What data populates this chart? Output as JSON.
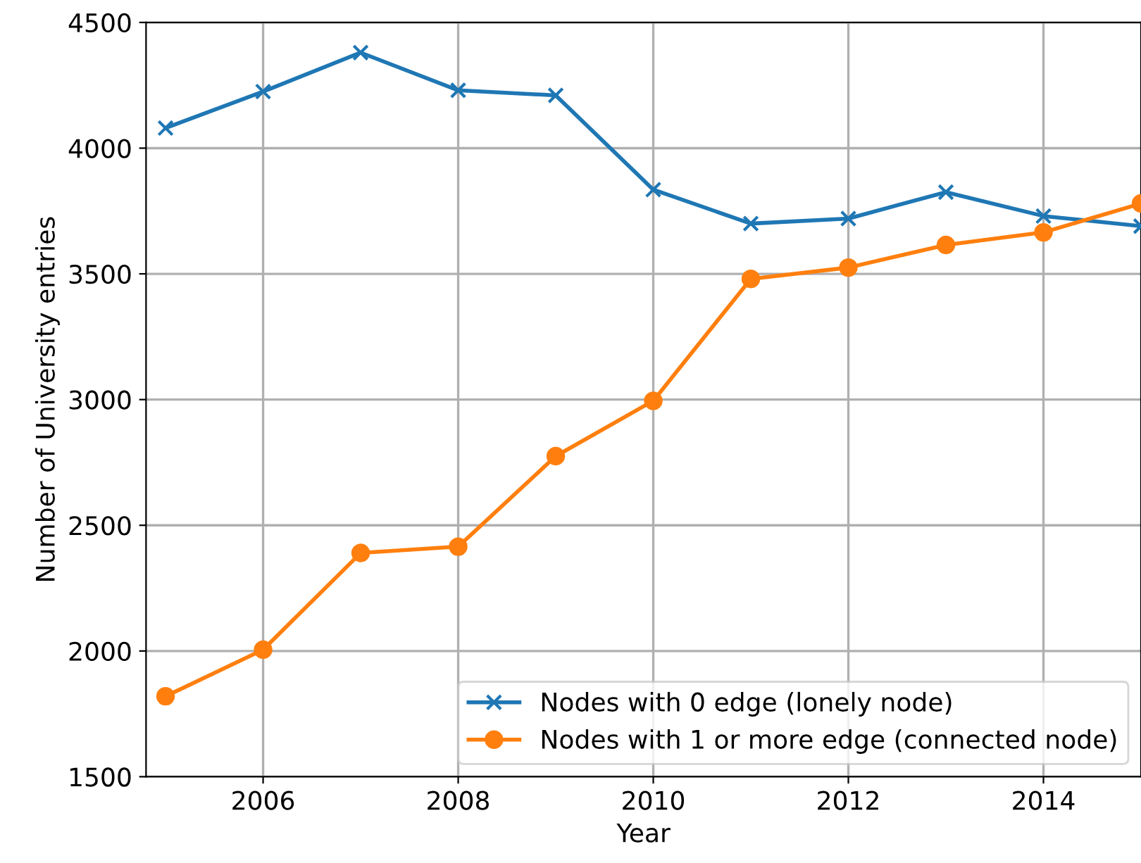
{
  "chart_data": {
    "type": "line",
    "xlabel": "Year",
    "ylabel": "Number of University entries",
    "x": [
      2005,
      2006,
      2007,
      2008,
      2009,
      2010,
      2011,
      2012,
      2013,
      2014,
      2015
    ],
    "series": [
      {
        "name": "Nodes with 0 edge (lonely node)",
        "color": "#1f77b4",
        "marker": "cross",
        "values": [
          4080,
          4225,
          4380,
          4230,
          4210,
          3835,
          3700,
          3720,
          3825,
          3730,
          3690
        ]
      },
      {
        "name": "Nodes with 1 or more edge (connected node)",
        "color": "#ff7f0e",
        "marker": "circle",
        "values": [
          1820,
          2005,
          2390,
          2415,
          2775,
          2995,
          3480,
          3525,
          3615,
          3665,
          3780
        ]
      }
    ],
    "xlim": [
      2004.8,
      2015.0
    ],
    "xticks": [
      2006,
      2008,
      2010,
      2012,
      2014
    ],
    "ylim": [
      1500,
      4500
    ],
    "yticks": [
      1500,
      2000,
      2500,
      3000,
      3500,
      4000,
      4500
    ],
    "grid": true,
    "legend": "bottom right",
    "line_style": "solid"
  }
}
